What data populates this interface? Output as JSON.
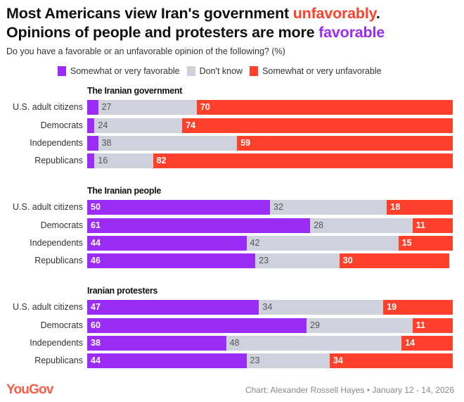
{
  "title": {
    "line1_pre": "Most Americans view Iran's government ",
    "line1_hl": "unfavorably",
    "line1_post": ".",
    "line2_pre": "Opinions of people and protesters are more ",
    "line2_hl": "favorable"
  },
  "subtitle": "Do you have a favorable or an unfavorable opinion of the following? (%)",
  "colors": {
    "favorable": "#9b2cf6",
    "dont_know": "#cfd2dc",
    "unfavorable": "#ff412c"
  },
  "footer": {
    "logo": "YouGov",
    "credit": "Chart: Alexander Rossell Hayes • January 12 - 14, 2026"
  },
  "chart_data": {
    "type": "bar",
    "stacked": true,
    "orientation": "horizontal",
    "legend": [
      "Somewhat or very favorable",
      "Don't know",
      "Somewhat or very unfavorable"
    ],
    "legend_placement": "top",
    "categories": [
      "U.S. adult citizens",
      "Democrats",
      "Independents",
      "Republicans"
    ],
    "groups": [
      {
        "title": "The Iranian government",
        "favorable": [
          3,
          2,
          3,
          2
        ],
        "dont_know": [
          27,
          24,
          38,
          16
        ],
        "unfavorable": [
          70,
          74,
          59,
          82
        ]
      },
      {
        "title": "The Iranian people",
        "favorable": [
          50,
          61,
          44,
          46
        ],
        "dont_know": [
          32,
          28,
          42,
          23
        ],
        "unfavorable": [
          18,
          11,
          15,
          30
        ]
      },
      {
        "title": "Iranian protesters",
        "favorable": [
          47,
          60,
          38,
          44
        ],
        "dont_know": [
          34,
          29,
          48,
          23
        ],
        "unfavorable": [
          19,
          11,
          14,
          34
        ]
      }
    ]
  }
}
